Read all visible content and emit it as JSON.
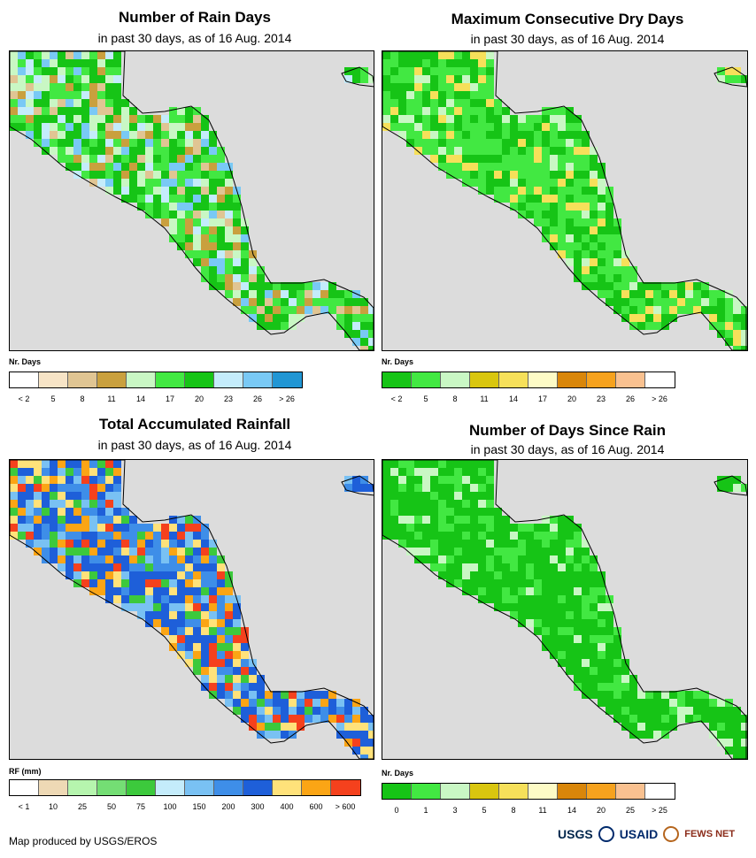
{
  "panels": [
    {
      "title": "Number of Rain Days",
      "subtitle": "in past 30 days, as of 16 Aug. 2014",
      "unit": "Nr. Days",
      "colors": [
        "#ffffff",
        "#f7e4c6",
        "#e0c593",
        "#c9a03e",
        "#c9f7c4",
        "#42e842",
        "#16c416",
        "#c4ecfb",
        "#79c9f5",
        "#2196d4"
      ],
      "ticks": [
        "< 2",
        "5",
        "8",
        "11",
        "14",
        "17",
        "20",
        "23",
        "26",
        "> 26"
      ],
      "land_palette": [
        "#16c416",
        "#16c416",
        "#42e842",
        "#42e842",
        "#c9f7c4",
        "#79c9f5",
        "#c4ecfb",
        "#c9a03e",
        "#e0c593",
        "#16c416"
      ]
    },
    {
      "title": "Maximum Consecutive Dry Days",
      "subtitle": "in past 30 days, as of 16 Aug. 2014",
      "unit": "Nr. Days",
      "colors": [
        "#16c416",
        "#42e842",
        "#c9f7c4",
        "#d9c60f",
        "#f6e05a",
        "#fdfbc6",
        "#d9860a",
        "#f6a21e",
        "#f9c190",
        "#ffffff"
      ],
      "ticks": [
        "< 2",
        "5",
        "8",
        "11",
        "14",
        "17",
        "20",
        "23",
        "26",
        "> 26"
      ],
      "land_palette": [
        "#42e842",
        "#42e842",
        "#42e842",
        "#16c416",
        "#16c416",
        "#c9f7c4",
        "#42e842",
        "#16c416",
        "#f6e05a",
        "#42e842"
      ]
    },
    {
      "title": "Total Accumulated Rainfall",
      "subtitle": "in past 30 days, as of 16 Aug. 2014",
      "unit": "RF (mm)",
      "colors": [
        "#ffffff",
        "#eed9b5",
        "#b6f5ae",
        "#74de74",
        "#3cc93c",
        "#c4ecfb",
        "#79c1f3",
        "#3e8ee8",
        "#1e5fd9",
        "#ffe27a",
        "#fba515",
        "#f5411d"
      ],
      "ticks": [
        "< 1",
        "10",
        "25",
        "50",
        "75",
        "100",
        "150",
        "200",
        "300",
        "400",
        "600",
        "> 600"
      ],
      "land_palette": [
        "#1e5fd9",
        "#3e8ee8",
        "#1e5fd9",
        "#79c1f3",
        "#3e8ee8",
        "#ffe27a",
        "#fba515",
        "#1e5fd9",
        "#3cc93c",
        "#f5411d"
      ]
    },
    {
      "title": "Number of Days Since Rain",
      "subtitle": "in past 30 days, as of 16 Aug. 2014",
      "unit": "Nr. Days",
      "colors": [
        "#16c416",
        "#42e842",
        "#c9f7c4",
        "#d9c60f",
        "#f6e05a",
        "#fdfbc6",
        "#d9860a",
        "#f6a21e",
        "#f9c190",
        "#ffffff"
      ],
      "ticks": [
        "0",
        "1",
        "3",
        "5",
        "8",
        "11",
        "14",
        "20",
        "25",
        "> 25"
      ],
      "land_palette": [
        "#16c416",
        "#16c416",
        "#16c416",
        "#16c416",
        "#42e842",
        "#16c416",
        "#16c416",
        "#42e842",
        "#16c416",
        "#c9f7c4"
      ]
    }
  ],
  "footer": "Map produced by USGS/EROS",
  "logos": {
    "usgs": "USGS",
    "usaid": "USAID",
    "fews": "FEWS NET"
  }
}
